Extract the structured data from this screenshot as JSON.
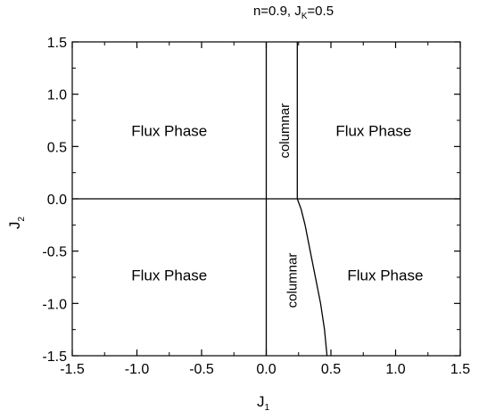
{
  "chart_data": {
    "type": "phase-diagram",
    "title": {
      "main": "n=0.9, J",
      "sub": "K",
      "rest": "=0.5"
    },
    "xlabel": {
      "main": "J",
      "sub": "1"
    },
    "ylabel": {
      "main": "J",
      "sub": "2"
    },
    "xlim": [
      -1.5,
      1.5
    ],
    "ylim": [
      -1.5,
      1.5
    ],
    "xticks": [
      {
        "value": -1.5,
        "label": "-1.5"
      },
      {
        "value": -1.0,
        "label": "-1.0"
      },
      {
        "value": -0.5,
        "label": "-0.5"
      },
      {
        "value": 0.0,
        "label": "0.0"
      },
      {
        "value": 0.5,
        "label": "0.5"
      },
      {
        "value": 1.0,
        "label": "1.0"
      },
      {
        "value": 1.5,
        "label": "1.5"
      }
    ],
    "yticks": [
      {
        "value": 1.5,
        "label": "1.5"
      },
      {
        "value": 1.0,
        "label": "1.0"
      },
      {
        "value": 0.5,
        "label": "0.5"
      },
      {
        "value": 0.0,
        "label": "0.0"
      },
      {
        "value": -0.5,
        "label": "-0.5"
      },
      {
        "value": -1.0,
        "label": "-1.0"
      },
      {
        "value": -1.5,
        "label": "-1.5"
      }
    ],
    "boundaries": [
      {
        "name": "j1-zero",
        "points": [
          [
            0.0,
            -1.5
          ],
          [
            0.0,
            1.5
          ]
        ]
      },
      {
        "name": "j2-zero",
        "points": [
          [
            -1.5,
            0.0
          ],
          [
            1.5,
            0.0
          ]
        ]
      },
      {
        "name": "upper-right",
        "points": [
          [
            0.24,
            0.0
          ],
          [
            0.24,
            1.5
          ]
        ]
      },
      {
        "name": "lower-right",
        "points": [
          [
            0.24,
            0.0
          ],
          [
            0.27,
            -0.1
          ],
          [
            0.3,
            -0.25
          ],
          [
            0.34,
            -0.5
          ],
          [
            0.38,
            -0.75
          ],
          [
            0.42,
            -1.0
          ],
          [
            0.45,
            -1.25
          ],
          [
            0.47,
            -1.5
          ]
        ]
      }
    ],
    "regions": [
      {
        "name": "upper-left",
        "label": "Flux Phase",
        "x": -0.75,
        "y": 0.65,
        "vertical": false
      },
      {
        "name": "upper-right",
        "label": "Flux Phase",
        "x": 0.83,
        "y": 0.65,
        "vertical": false
      },
      {
        "name": "lower-left",
        "label": "Flux Phase",
        "x": -0.75,
        "y": -0.73,
        "vertical": false
      },
      {
        "name": "lower-right",
        "label": "Flux Phase",
        "x": 0.92,
        "y": -0.73,
        "vertical": false
      },
      {
        "name": "upper-columnar",
        "label": "columnar",
        "x": 0.14,
        "y": 0.65,
        "vertical": true
      },
      {
        "name": "lower-columnar",
        "label": "columnar",
        "x": 0.2,
        "y": -0.78,
        "vertical": true
      }
    ],
    "grid": false,
    "legend": "none"
  }
}
